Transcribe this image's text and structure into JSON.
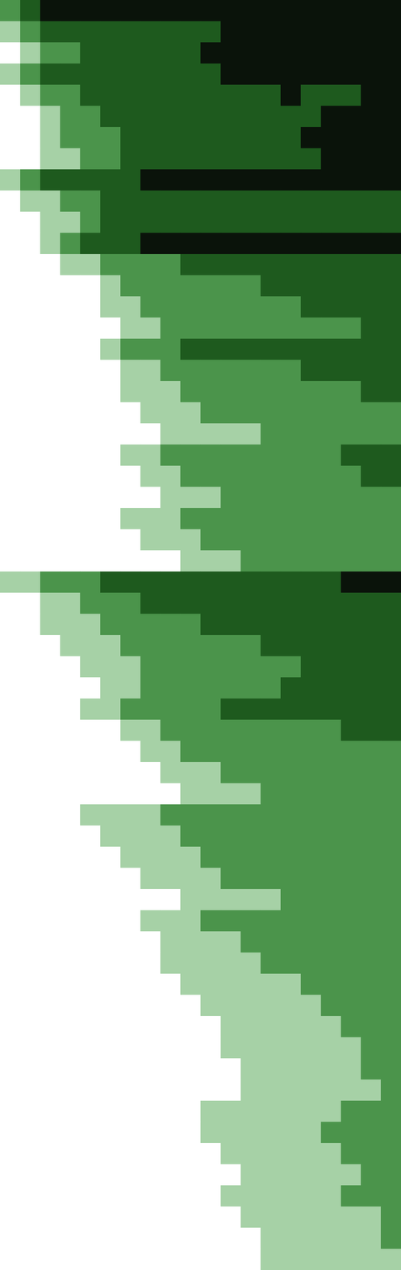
{
  "chart_data": {
    "type": "heatmap",
    "tick_labels": false,
    "zlim": [
      0,
      4
    ],
    "cells": [
      [
        2,
        3,
        4,
        4,
        4,
        4,
        4,
        4,
        4,
        4,
        4,
        4,
        4,
        4,
        4,
        4,
        4,
        4,
        4,
        4
      ],
      [
        1,
        2,
        3,
        3,
        3,
        3,
        3,
        3,
        3,
        3,
        3,
        4,
        4,
        4,
        4,
        4,
        4,
        4,
        4,
        4
      ],
      [
        0,
        1,
        2,
        2,
        3,
        3,
        3,
        3,
        3,
        3,
        4,
        4,
        4,
        4,
        4,
        4,
        4,
        4,
        4,
        4
      ],
      [
        1,
        2,
        3,
        3,
        3,
        3,
        3,
        3,
        3,
        3,
        3,
        4,
        4,
        4,
        4,
        4,
        4,
        4,
        4,
        4
      ],
      [
        0,
        1,
        2,
        2,
        3,
        3,
        3,
        3,
        3,
        3,
        3,
        3,
        3,
        3,
        4,
        3,
        3,
        3,
        4,
        4
      ],
      [
        0,
        0,
        1,
        2,
        2,
        3,
        3,
        3,
        3,
        3,
        3,
        3,
        3,
        3,
        3,
        3,
        4,
        4,
        4,
        4
      ],
      [
        0,
        0,
        1,
        2,
        2,
        2,
        3,
        3,
        3,
        3,
        3,
        3,
        3,
        3,
        3,
        4,
        4,
        4,
        4,
        4
      ],
      [
        0,
        0,
        1,
        1,
        2,
        2,
        3,
        3,
        3,
        3,
        3,
        3,
        3,
        3,
        3,
        3,
        4,
        4,
        4,
        4
      ],
      [
        1,
        2,
        3,
        3,
        3,
        3,
        3,
        4,
        4,
        4,
        4,
        4,
        4,
        4,
        4,
        4,
        4,
        4,
        4,
        4
      ],
      [
        0,
        1,
        1,
        2,
        2,
        3,
        3,
        3,
        3,
        3,
        3,
        3,
        3,
        3,
        3,
        3,
        3,
        3,
        3,
        3
      ],
      [
        0,
        0,
        1,
        1,
        2,
        3,
        3,
        3,
        3,
        3,
        3,
        3,
        3,
        3,
        3,
        3,
        3,
        3,
        3,
        3
      ],
      [
        0,
        0,
        1,
        2,
        3,
        3,
        3,
        4,
        4,
        4,
        4,
        4,
        4,
        4,
        4,
        4,
        4,
        4,
        4,
        4
      ],
      [
        0,
        0,
        0,
        1,
        1,
        2,
        2,
        2,
        2,
        3,
        3,
        3,
        3,
        3,
        3,
        3,
        3,
        3,
        3,
        3
      ],
      [
        0,
        0,
        0,
        0,
        0,
        1,
        2,
        2,
        2,
        2,
        2,
        2,
        2,
        3,
        3,
        3,
        3,
        3,
        3,
        3
      ],
      [
        0,
        0,
        0,
        0,
        0,
        1,
        1,
        2,
        2,
        2,
        2,
        2,
        2,
        2,
        2,
        3,
        3,
        3,
        3,
        3
      ],
      [
        0,
        0,
        0,
        0,
        0,
        0,
        1,
        1,
        2,
        2,
        2,
        2,
        2,
        2,
        2,
        2,
        2,
        2,
        3,
        3
      ],
      [
        0,
        0,
        0,
        0,
        0,
        1,
        2,
        2,
        2,
        3,
        3,
        3,
        3,
        3,
        3,
        3,
        3,
        3,
        3,
        3
      ],
      [
        0,
        0,
        0,
        0,
        0,
        0,
        1,
        1,
        2,
        2,
        2,
        2,
        2,
        2,
        2,
        3,
        3,
        3,
        3,
        3
      ],
      [
        0,
        0,
        0,
        0,
        0,
        0,
        1,
        1,
        1,
        2,
        2,
        2,
        2,
        2,
        2,
        2,
        2,
        2,
        3,
        3
      ],
      [
        0,
        0,
        0,
        0,
        0,
        0,
        0,
        1,
        1,
        1,
        2,
        2,
        2,
        2,
        2,
        2,
        2,
        2,
        2,
        2
      ],
      [
        0,
        0,
        0,
        0,
        0,
        0,
        0,
        0,
        1,
        1,
        1,
        1,
        1,
        2,
        2,
        2,
        2,
        2,
        2,
        2
      ],
      [
        0,
        0,
        0,
        0,
        0,
        0,
        1,
        1,
        2,
        2,
        2,
        2,
        2,
        2,
        2,
        2,
        2,
        3,
        3,
        3
      ],
      [
        0,
        0,
        0,
        0,
        0,
        0,
        0,
        1,
        1,
        2,
        2,
        2,
        2,
        2,
        2,
        2,
        2,
        2,
        3,
        3
      ],
      [
        0,
        0,
        0,
        0,
        0,
        0,
        0,
        0,
        1,
        1,
        1,
        2,
        2,
        2,
        2,
        2,
        2,
        2,
        2,
        2
      ],
      [
        0,
        0,
        0,
        0,
        0,
        0,
        1,
        1,
        1,
        2,
        2,
        2,
        2,
        2,
        2,
        2,
        2,
        2,
        2,
        2
      ],
      [
        0,
        0,
        0,
        0,
        0,
        0,
        0,
        1,
        1,
        1,
        2,
        2,
        2,
        2,
        2,
        2,
        2,
        2,
        2,
        2
      ],
      [
        0,
        0,
        0,
        0,
        0,
        0,
        0,
        0,
        0,
        1,
        1,
        1,
        2,
        2,
        2,
        2,
        2,
        2,
        2,
        2
      ],
      [
        1,
        1,
        2,
        2,
        2,
        3,
        3,
        3,
        3,
        3,
        3,
        3,
        3,
        3,
        3,
        3,
        3,
        4,
        4,
        4
      ],
      [
        0,
        0,
        1,
        1,
        2,
        2,
        2,
        3,
        3,
        3,
        3,
        3,
        3,
        3,
        3,
        3,
        3,
        3,
        3,
        3
      ],
      [
        0,
        0,
        1,
        1,
        1,
        2,
        2,
        2,
        2,
        2,
        3,
        3,
        3,
        3,
        3,
        3,
        3,
        3,
        3,
        3
      ],
      [
        0,
        0,
        0,
        1,
        1,
        1,
        2,
        2,
        2,
        2,
        2,
        2,
        2,
        3,
        3,
        3,
        3,
        3,
        3,
        3
      ],
      [
        0,
        0,
        0,
        0,
        1,
        1,
        1,
        2,
        2,
        2,
        2,
        2,
        2,
        2,
        2,
        3,
        3,
        3,
        3,
        3
      ],
      [
        0,
        0,
        0,
        0,
        0,
        1,
        1,
        2,
        2,
        2,
        2,
        2,
        2,
        2,
        3,
        3,
        3,
        3,
        3,
        3
      ],
      [
        0,
        0,
        0,
        0,
        1,
        1,
        2,
        2,
        2,
        2,
        2,
        3,
        3,
        3,
        3,
        3,
        3,
        3,
        3,
        3
      ],
      [
        0,
        0,
        0,
        0,
        0,
        0,
        1,
        1,
        2,
        2,
        2,
        2,
        2,
        2,
        2,
        2,
        2,
        3,
        3,
        3
      ],
      [
        0,
        0,
        0,
        0,
        0,
        0,
        0,
        1,
        1,
        2,
        2,
        2,
        2,
        2,
        2,
        2,
        2,
        2,
        2,
        2
      ],
      [
        0,
        0,
        0,
        0,
        0,
        0,
        0,
        0,
        1,
        1,
        1,
        2,
        2,
        2,
        2,
        2,
        2,
        2,
        2,
        2
      ],
      [
        0,
        0,
        0,
        0,
        0,
        0,
        0,
        0,
        0,
        1,
        1,
        1,
        1,
        2,
        2,
        2,
        2,
        2,
        2,
        2
      ],
      [
        0,
        0,
        0,
        0,
        1,
        1,
        1,
        1,
        2,
        2,
        2,
        2,
        2,
        2,
        2,
        2,
        2,
        2,
        2,
        2
      ],
      [
        0,
        0,
        0,
        0,
        0,
        1,
        1,
        1,
        1,
        2,
        2,
        2,
        2,
        2,
        2,
        2,
        2,
        2,
        2,
        2
      ],
      [
        0,
        0,
        0,
        0,
        0,
        0,
        1,
        1,
        1,
        1,
        2,
        2,
        2,
        2,
        2,
        2,
        2,
        2,
        2,
        2
      ],
      [
        0,
        0,
        0,
        0,
        0,
        0,
        0,
        1,
        1,
        1,
        1,
        2,
        2,
        2,
        2,
        2,
        2,
        2,
        2,
        2
      ],
      [
        0,
        0,
        0,
        0,
        0,
        0,
        0,
        0,
        0,
        1,
        1,
        1,
        1,
        1,
        2,
        2,
        2,
        2,
        2,
        2
      ],
      [
        0,
        0,
        0,
        0,
        0,
        0,
        0,
        1,
        1,
        1,
        2,
        2,
        2,
        2,
        2,
        2,
        2,
        2,
        2,
        2
      ],
      [
        0,
        0,
        0,
        0,
        0,
        0,
        0,
        0,
        1,
        1,
        1,
        1,
        2,
        2,
        2,
        2,
        2,
        2,
        2,
        2
      ],
      [
        0,
        0,
        0,
        0,
        0,
        0,
        0,
        0,
        1,
        1,
        1,
        1,
        1,
        2,
        2,
        2,
        2,
        2,
        2,
        2
      ],
      [
        0,
        0,
        0,
        0,
        0,
        0,
        0,
        0,
        0,
        1,
        1,
        1,
        1,
        1,
        1,
        2,
        2,
        2,
        2,
        2
      ],
      [
        0,
        0,
        0,
        0,
        0,
        0,
        0,
        0,
        0,
        0,
        1,
        1,
        1,
        1,
        1,
        1,
        2,
        2,
        2,
        2
      ],
      [
        0,
        0,
        0,
        0,
        0,
        0,
        0,
        0,
        0,
        0,
        0,
        1,
        1,
        1,
        1,
        1,
        1,
        2,
        2,
        2
      ],
      [
        0,
        0,
        0,
        0,
        0,
        0,
        0,
        0,
        0,
        0,
        0,
        1,
        1,
        1,
        1,
        1,
        1,
        1,
        2,
        2
      ],
      [
        0,
        0,
        0,
        0,
        0,
        0,
        0,
        0,
        0,
        0,
        0,
        0,
        1,
        1,
        1,
        1,
        1,
        1,
        2,
        2
      ],
      [
        0,
        0,
        0,
        0,
        0,
        0,
        0,
        0,
        0,
        0,
        0,
        0,
        1,
        1,
        1,
        1,
        1,
        1,
        1,
        2
      ],
      [
        0,
        0,
        0,
        0,
        0,
        0,
        0,
        0,
        0,
        0,
        1,
        1,
        1,
        1,
        1,
        1,
        1,
        2,
        2,
        2
      ],
      [
        0,
        0,
        0,
        0,
        0,
        0,
        0,
        0,
        0,
        0,
        1,
        1,
        1,
        1,
        1,
        1,
        2,
        2,
        2,
        2
      ],
      [
        0,
        0,
        0,
        0,
        0,
        0,
        0,
        0,
        0,
        0,
        0,
        1,
        1,
        1,
        1,
        1,
        1,
        2,
        2,
        2
      ],
      [
        0,
        0,
        0,
        0,
        0,
        0,
        0,
        0,
        0,
        0,
        0,
        0,
        1,
        1,
        1,
        1,
        1,
        1,
        2,
        2
      ],
      [
        0,
        0,
        0,
        0,
        0,
        0,
        0,
        0,
        0,
        0,
        0,
        1,
        1,
        1,
        1,
        1,
        1,
        2,
        2,
        2
      ],
      [
        0,
        0,
        0,
        0,
        0,
        0,
        0,
        0,
        0,
        0,
        0,
        0,
        1,
        1,
        1,
        1,
        1,
        1,
        1,
        2
      ],
      [
        0,
        0,
        0,
        0,
        0,
        0,
        0,
        0,
        0,
        0,
        0,
        0,
        0,
        1,
        1,
        1,
        1,
        1,
        1,
        2
      ],
      [
        0,
        0,
        0,
        0,
        0,
        0,
        0,
        0,
        0,
        0,
        0,
        0,
        0,
        1,
        1,
        1,
        1,
        1,
        1,
        1
      ]
    ]
  }
}
